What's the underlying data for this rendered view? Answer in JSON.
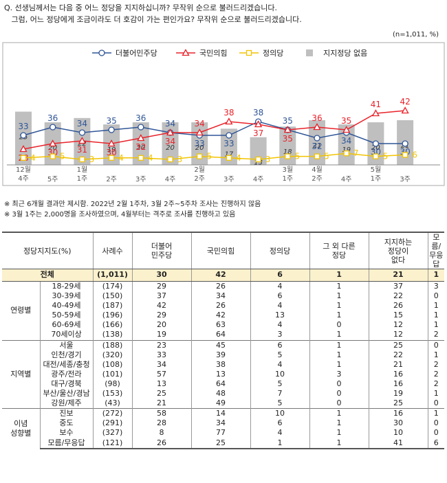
{
  "question": {
    "line1": "Q. 선생님께서는 다음 중 어느 정당을 지지하십니까? 무작위 순으로 불러드리겠습니다.",
    "line2": "   그럼, 어느 정당에게 조금이라도 더 호감이 가는 편인가요? 무작위 순으로 불러드리겠습니다."
  },
  "sample_note": "(n=1,011, %)",
  "notes": [
    "※ 최근 6개월 결과만 제시함. 2022년 2월 1주차, 3월 2주~5주차 조사는 진행하지 않음",
    "※ 3월 1주는 2,000명을 조사하였으며, 4월부터는 격주로 조사를 진행하고 있음"
  ],
  "chart_data": {
    "type": "line",
    "categories": [
      "12월 4주",
      "5주",
      "1월 1주",
      "2주",
      "3주",
      "4주",
      "2월 2주",
      "3주",
      "4주",
      "3월 1주",
      "4월 2주",
      "4주",
      "5월 1주",
      "3주"
    ],
    "series": [
      {
        "name": "더불어민주당",
        "type": "line",
        "color": "#2f5597",
        "marker": "circle",
        "values": [
          33,
          36,
          34,
          35,
          36,
          34,
          33,
          33,
          38,
          35,
          32,
          34,
          30,
          30
        ]
      },
      {
        "name": "국민의힘",
        "type": "line",
        "color": "#e8222a",
        "marker": "triangle",
        "values": [
          28,
          30,
          31,
          30,
          32,
          34,
          34,
          38,
          37,
          35,
          36,
          35,
          41,
          42
        ]
      },
      {
        "name": "정의당",
        "type": "line",
        "color": "#f2c400",
        "marker": "square",
        "values": [
          4,
          5,
          3,
          4,
          4,
          3,
          5,
          4,
          3,
          5,
          5,
          7,
          5,
          6
        ]
      },
      {
        "name": "지지정당 없음",
        "type": "bar",
        "color": "#bfbfbf",
        "values": [
          25,
          20,
          22,
          19,
          20,
          20,
          20,
          17,
          13,
          18,
          21,
          19,
          20,
          21
        ]
      }
    ],
    "ylim": [
      0,
      45
    ],
    "legend_position": "top"
  },
  "table": {
    "headers": [
      "정당지지도(%)",
      "사례수",
      "더불어\n민주당",
      "국민의힘",
      "정의당",
      "그 외 다른\n정당",
      "지지하는\n정당이\n없다",
      "모름/\n무응답"
    ],
    "total": {
      "label": "전체",
      "n": "(1,011)",
      "values": [
        "30",
        "42",
        "6",
        "1",
        "21",
        "1"
      ]
    },
    "groups": [
      {
        "name": "연령별",
        "rows": [
          {
            "label": "18-29세",
            "n": "(174)",
            "values": [
              "29",
              "26",
              "4",
              "1",
              "37",
              "3"
            ]
          },
          {
            "label": "30-39세",
            "n": "(150)",
            "values": [
              "37",
              "34",
              "6",
              "1",
              "22",
              "0"
            ]
          },
          {
            "label": "40-49세",
            "n": "(187)",
            "values": [
              "42",
              "26",
              "4",
              "1",
              "26",
              "1"
            ]
          },
          {
            "label": "50-59세",
            "n": "(196)",
            "values": [
              "29",
              "42",
              "13",
              "1",
              "15",
              "1"
            ]
          },
          {
            "label": "60-69세",
            "n": "(166)",
            "values": [
              "20",
              "63",
              "4",
              "0",
              "12",
              "1"
            ]
          },
          {
            "label": "70세이상",
            "n": "(138)",
            "values": [
              "19",
              "64",
              "3",
              "1",
              "12",
              "2"
            ]
          }
        ]
      },
      {
        "name": "지역별",
        "rows": [
          {
            "label": "서울",
            "n": "(188)",
            "values": [
              "23",
              "45",
              "6",
              "1",
              "25",
              "0"
            ]
          },
          {
            "label": "인천/경기",
            "n": "(320)",
            "values": [
              "33",
              "39",
              "5",
              "1",
              "22",
              "1"
            ]
          },
          {
            "label": "대전/세종/충청",
            "n": "(108)",
            "values": [
              "34",
              "38",
              "4",
              "1",
              "21",
              "2"
            ]
          },
          {
            "label": "광주/전라",
            "n": "(101)",
            "values": [
              "57",
              "13",
              "10",
              "3",
              "16",
              "2"
            ]
          },
          {
            "label": "대구/경북",
            "n": "(98)",
            "values": [
              "13",
              "64",
              "5",
              "0",
              "16",
              "2"
            ]
          },
          {
            "label": "부산/울산/경남",
            "n": "(153)",
            "values": [
              "25",
              "48",
              "7",
              "0",
              "19",
              "1"
            ]
          },
          {
            "label": "강원/제주",
            "n": "(43)",
            "values": [
              "21",
              "49",
              "5",
              "0",
              "25",
              "0"
            ]
          }
        ]
      },
      {
        "name": "이념\n성향별",
        "rows": [
          {
            "label": "진보",
            "n": "(272)",
            "values": [
              "58",
              "14",
              "10",
              "1",
              "16",
              "1"
            ]
          },
          {
            "label": "중도",
            "n": "(291)",
            "values": [
              "28",
              "34",
              "6",
              "1",
              "30",
              "0"
            ]
          },
          {
            "label": "보수",
            "n": "(327)",
            "values": [
              "8",
              "77",
              "4",
              "1",
              "10",
              "0"
            ]
          },
          {
            "label": "모름/무응답",
            "n": "(121)",
            "values": [
              "26",
              "25",
              "1",
              "1",
              "41",
              "6"
            ]
          }
        ]
      }
    ]
  }
}
